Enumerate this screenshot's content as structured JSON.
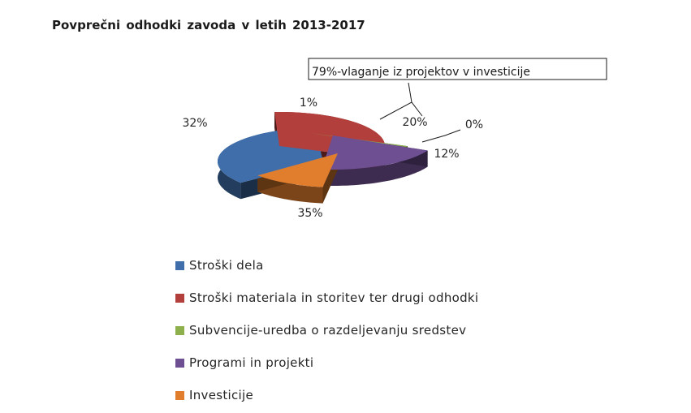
{
  "chart_data": {
    "type": "pie",
    "title": "Povprečni odhodki zavoda  v letih 2013-2017",
    "three_d": true,
    "exploded": true,
    "slices": [
      {
        "name": "Stroški dela",
        "value": 35,
        "label": "35%",
        "color": "#3F6EAB"
      },
      {
        "name": "Stroški materiala in storitev ter drugi odhodki",
        "value": 32,
        "label": "32%",
        "color": "#B23F3C"
      },
      {
        "name": "Subvencije-uredba o razdeljevanju sredstev",
        "value": 1,
        "label": "1%",
        "color": "#8DAF4C"
      },
      {
        "name": "Programi in projekti",
        "value": 20,
        "label": "20%",
        "color": "#6E4F92"
      },
      {
        "name": "Investicije",
        "value": 12,
        "label": "12%",
        "color": "#E07E2E"
      },
      {
        "name": "",
        "value": 0,
        "label": "0%",
        "color": "#4C9CB8"
      }
    ],
    "annotation": "79%-vlaganje iz projektov v investicije",
    "legend_position": "bottom"
  }
}
